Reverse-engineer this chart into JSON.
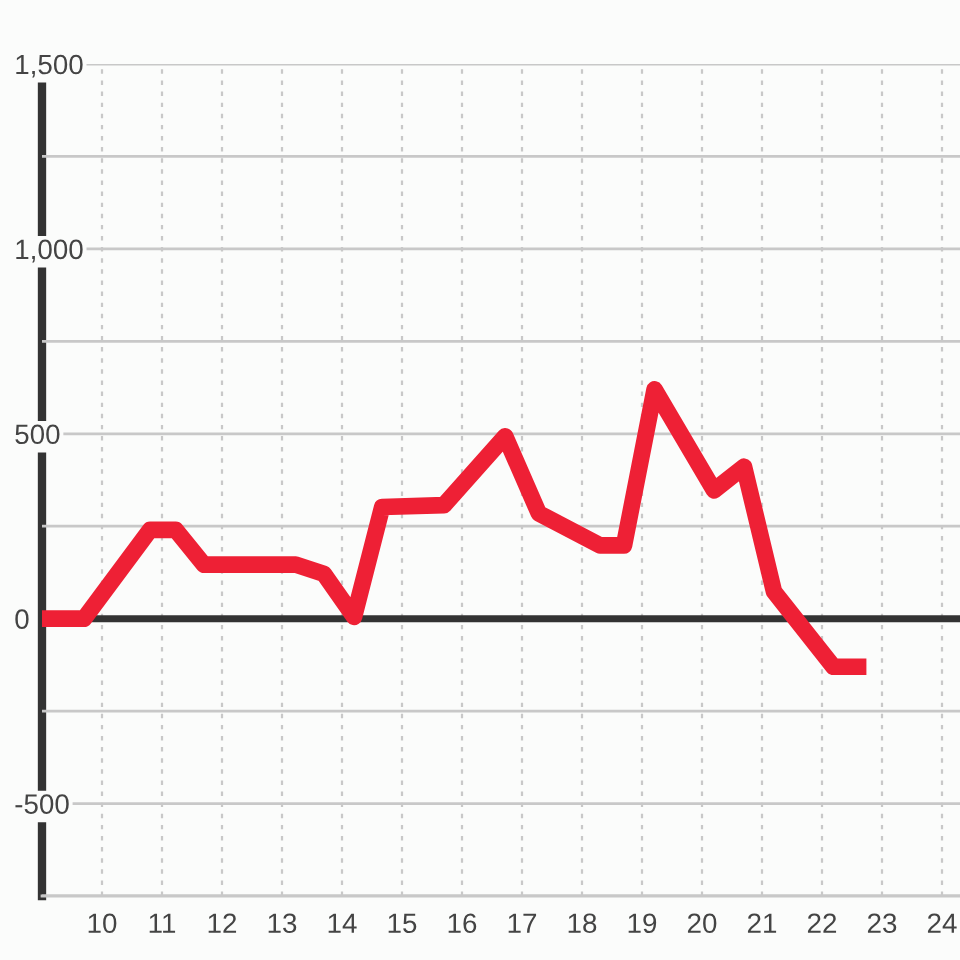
{
  "chart_data": {
    "type": "line",
    "x": [
      9,
      9.7,
      10.8,
      11.23,
      11.7,
      13.23,
      13.7,
      14.2,
      14.67,
      15.7,
      16.72,
      17.28,
      18.3,
      18.7,
      19.21,
      20.2,
      20.7,
      21.2,
      22.19,
      22.74
    ],
    "series": [
      {
        "color": "#ee2035",
        "values": [
          0,
          0,
          240,
          240,
          146,
          146,
          121,
          5,
          302,
          307,
          493,
          285,
          198,
          198,
          620,
          347,
          411,
          73,
          -130,
          -130
        ]
      }
    ],
    "xlim": [
      9,
      24.3
    ],
    "xticks": [
      10,
      11,
      12,
      13,
      14,
      15,
      16,
      17,
      18,
      19,
      20,
      21,
      22,
      23,
      24
    ],
    "ylim": [
      -750,
      1500
    ],
    "yticks": [
      {
        "value": -750,
        "label": null
      },
      -500,
      {
        "value": -250,
        "label": null
      },
      0,
      {
        "value": 250,
        "label": null
      },
      500,
      {
        "value": 750,
        "label": null
      },
      {
        "value": 1000,
        "label": "1,000"
      },
      {
        "value": 1250,
        "label": null
      },
      {
        "value": 1500,
        "label": "1,500"
      }
    ],
    "ref_lines": [
      {
        "axis": "y",
        "value": 0,
        "color": "#333333"
      }
    ],
    "grid": true,
    "marker": "none",
    "line_style": "solid"
  }
}
